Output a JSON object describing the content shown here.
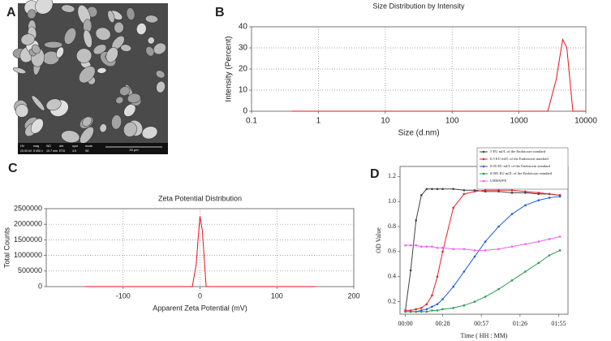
{
  "chart_data": [
    {
      "type": "image",
      "panel_label": "A",
      "scale_bar": "20 µm",
      "info_bar": {
        "headers": [
          "HV",
          "mag",
          "WD",
          "det",
          "spot",
          "mode"
        ],
        "values": [
          "20.00 kV",
          "5 000 x",
          "10.7 mm",
          "ETD",
          "4.5",
          "SE"
        ]
      }
    },
    {
      "type": "line",
      "panel_label": "B",
      "title": "Size Distribution by Intensity",
      "xlabel": "Size (d.nm)",
      "ylabel": "Intensity (Percent)",
      "xscale": "log",
      "xlim": [
        0.1,
        10000
      ],
      "xticks": [
        0.1,
        1,
        10,
        100,
        1000,
        10000
      ],
      "ylim": [
        0,
        40
      ],
      "yticks": [
        0,
        10,
        20,
        30,
        40
      ],
      "grid": true,
      "color": "#e8101a",
      "x": [
        0.4,
        1,
        10,
        100,
        1000,
        2700,
        3600,
        4500,
        5200,
        6400,
        10000
      ],
      "values": [
        0,
        0,
        0,
        0,
        0,
        0,
        15,
        34,
        30,
        0,
        0
      ]
    },
    {
      "type": "line",
      "panel_label": "C",
      "title": "Zeta Potential Distribution",
      "xlabel": "Apparent Zeta Potential (mV)",
      "ylabel": "Total Counts",
      "xlim": [
        -200,
        200
      ],
      "xticks": [
        -100,
        0,
        100,
        200
      ],
      "ylim": [
        0,
        2500000
      ],
      "yticks": [
        0,
        500000,
        1000000,
        1500000,
        2000000,
        2500000
      ],
      "grid": true,
      "color": "#e8101a",
      "x": [
        -150,
        -10,
        -5,
        -1,
        0,
        3,
        8,
        15,
        150
      ],
      "values": [
        0,
        0,
        700000,
        2000000,
        2250000,
        1800000,
        0,
        0,
        0
      ]
    },
    {
      "type": "line",
      "panel_label": "D",
      "xlabel": "Time ( HH : MM)",
      "ylabel": "OD  Value",
      "markers": true,
      "grid": false,
      "legend": "upper right",
      "xlim": [
        -4,
        122
      ],
      "xticks": [
        {
          "value": 0,
          "label": "00:00"
        },
        {
          "value": 28,
          "label": "00:28"
        },
        {
          "value": 57,
          "label": "00:57"
        },
        {
          "value": 86,
          "label": "01:26"
        },
        {
          "value": 115,
          "label": "01:55"
        }
      ],
      "ylim": [
        0.1,
        1.28
      ],
      "yticks": [
        0.2,
        0.4,
        0.6,
        0.8,
        {
          "value": 1,
          "label": "1.0"
        },
        1.2
      ],
      "x": [
        0,
        4,
        8,
        12,
        16,
        20,
        24,
        28,
        36,
        44,
        52,
        60,
        70,
        80,
        90,
        100,
        108,
        116
      ],
      "series": [
        {
          "name": "5 EU ml/L of the Endotoxin standard",
          "color": "#404040",
          "values": [
            0.13,
            0.45,
            0.85,
            1.05,
            1.1,
            1.1,
            1.1,
            1.1,
            1.1,
            1.09,
            1.09,
            1.08,
            1.08,
            1.07,
            1.07,
            1.06,
            1.06,
            1.05
          ]
        },
        {
          "name": "0.5 EU ml/L of the Endotoxin standard",
          "color": "#e8202a",
          "values": [
            0.13,
            0.13,
            0.14,
            0.15,
            0.18,
            0.25,
            0.4,
            0.6,
            0.95,
            1.06,
            1.08,
            1.09,
            1.09,
            1.09,
            1.08,
            1.07,
            1.06,
            1.05
          ]
        },
        {
          "name": "0.05 EU ml/L of the Endotoxin standard",
          "color": "#1f5fd0",
          "values": [
            0.12,
            0.12,
            0.12,
            0.13,
            0.14,
            0.16,
            0.18,
            0.22,
            0.32,
            0.44,
            0.56,
            0.68,
            0.8,
            0.9,
            0.97,
            1.01,
            1.03,
            1.04
          ]
        },
        {
          "name": "0.005 EU ml/L of the Endotoxin standard",
          "color": "#2a9a50",
          "values": [
            0.12,
            0.12,
            0.12,
            0.12,
            0.12,
            0.13,
            0.13,
            0.14,
            0.15,
            0.17,
            0.2,
            0.24,
            0.3,
            0.37,
            0.44,
            0.51,
            0.57,
            0.61
          ]
        },
        {
          "name": "UHMWPE",
          "color": "#f060f0",
          "values": [
            0.65,
            0.65,
            0.65,
            0.64,
            0.64,
            0.64,
            0.63,
            0.63,
            0.62,
            0.62,
            0.61,
            0.61,
            0.62,
            0.64,
            0.66,
            0.68,
            0.7,
            0.72
          ]
        }
      ]
    }
  ]
}
